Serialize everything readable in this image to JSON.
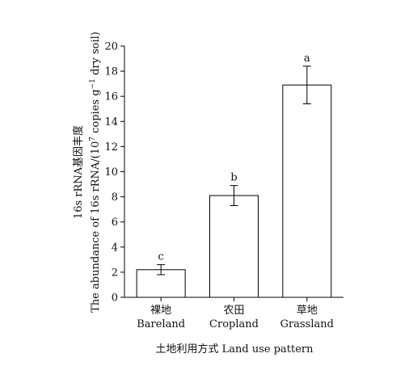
{
  "chart_data": {
    "type": "bar",
    "categories": [
      "裸地",
      "农田",
      "草地"
    ],
    "categories_en": [
      "Bareland",
      "Cropland",
      "Grassland"
    ],
    "values": [
      2.2,
      8.1,
      16.9
    ],
    "errors": [
      0.4,
      0.8,
      1.5
    ],
    "significance": [
      "c",
      "b",
      "a"
    ],
    "xlabel": "土地利用方式 Land use pattern",
    "ylabel_line1": "16s rRNA基因丰度",
    "ylabel_line2_pre": "The abundance of 16s rRNA/(10",
    "ylabel_line2_sup1": "7",
    "ylabel_line2_mid": " copies g",
    "ylabel_line2_sup2": "−1",
    "ylabel_line2_post": " dry soil)",
    "ylim": [
      0,
      20
    ],
    "yticks": [
      0,
      2,
      4,
      6,
      8,
      10,
      12,
      14,
      16,
      18,
      20
    ],
    "bar_fill": "#ffffff",
    "bar_stroke": "#000000",
    "grid": false
  }
}
